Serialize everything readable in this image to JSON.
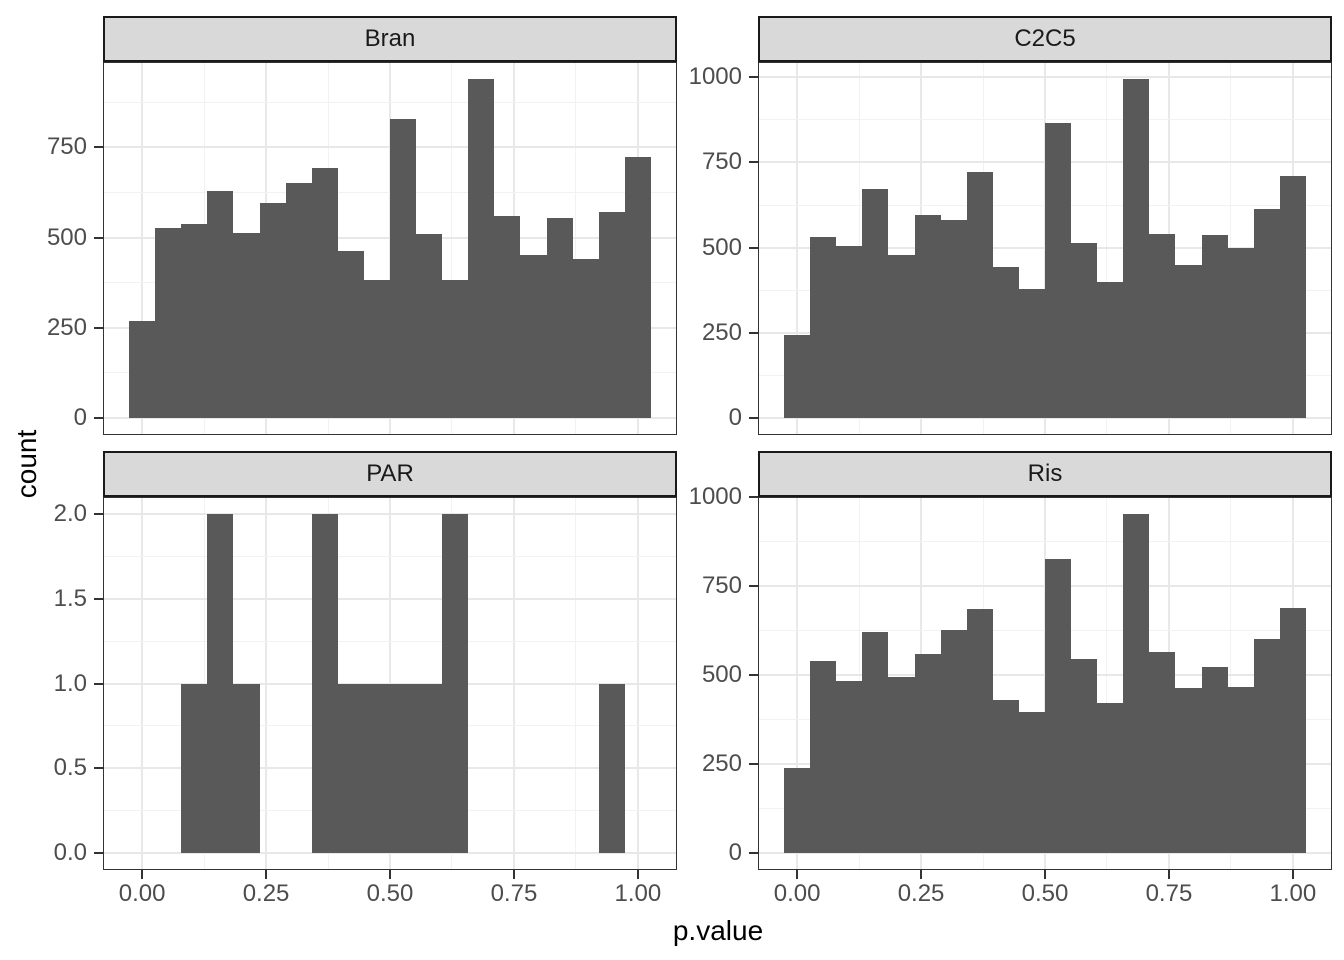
{
  "figure": {
    "xlabel": "p.value",
    "ylabel": "count"
  },
  "colors": {
    "background": "#ffffff",
    "bar_fill": "#595959",
    "strip_bg": "#d9d9d9",
    "strip_border": "#1a1a1a",
    "strip_text": "#1a1a1a",
    "panel_bg": "#ffffff",
    "panel_border": "#333333",
    "grid_major": "#e8e8e8",
    "grid_minor": "#f2f2f2",
    "tick_label": "#4d4d4d",
    "tick_mark": "#333333",
    "axis_title": "#000000"
  },
  "x_axis": {
    "title": "p.value",
    "lim": [
      -0.0789,
      1.0789
    ],
    "ticks": [
      {
        "v": 0.0,
        "label": "0.00"
      },
      {
        "v": 0.25,
        "label": "0.25"
      },
      {
        "v": 0.5,
        "label": "0.50"
      },
      {
        "v": 0.75,
        "label": "0.75"
      },
      {
        "v": 1.0,
        "label": "1.00"
      }
    ],
    "minor_ticks": [
      0.125,
      0.375,
      0.625,
      0.875
    ]
  },
  "chart_data": [
    {
      "type": "bar",
      "facet": "Bran",
      "row": 0,
      "col": 0,
      "xlabel": "p.value",
      "ylabel": "count",
      "bin_start": -0.0263,
      "bin_width": 0.05263,
      "values": [
        270,
        527,
        538,
        630,
        512,
        595,
        652,
        692,
        463,
        382,
        830,
        510,
        383,
        940,
        560,
        452,
        555,
        441,
        570,
        723
      ],
      "ylim": [
        -47,
        987
      ],
      "y_ticks": [
        {
          "v": 0,
          "label": "0"
        },
        {
          "v": 250,
          "label": "250"
        },
        {
          "v": 500,
          "label": "500"
        },
        {
          "v": 750,
          "label": "750"
        }
      ],
      "y_minor_ticks": [
        125,
        375,
        625,
        875
      ]
    },
    {
      "type": "bar",
      "facet": "C2C5",
      "row": 0,
      "col": 1,
      "xlabel": "p.value",
      "ylabel": "count",
      "bin_start": -0.0263,
      "bin_width": 0.05263,
      "values": [
        243,
        530,
        505,
        673,
        479,
        595,
        580,
        723,
        444,
        378,
        866,
        515,
        400,
        995,
        541,
        450,
        537,
        499,
        612,
        710
      ],
      "ylim": [
        -49.75,
        1044.75
      ],
      "y_ticks": [
        {
          "v": 0,
          "label": "0"
        },
        {
          "v": 250,
          "label": "250"
        },
        {
          "v": 500,
          "label": "500"
        },
        {
          "v": 750,
          "label": "750"
        },
        {
          "v": 1000,
          "label": "1000"
        }
      ],
      "y_minor_ticks": [
        125,
        375,
        625,
        875
      ]
    },
    {
      "type": "bar",
      "facet": "PAR",
      "row": 1,
      "col": 0,
      "xlabel": "p.value",
      "ylabel": "count",
      "bin_start": -0.0263,
      "bin_width": 0.05263,
      "values": [
        0,
        0,
        1,
        2,
        1,
        0,
        0,
        2,
        1,
        1,
        1,
        1,
        2,
        0,
        0,
        0,
        0,
        0,
        1,
        0
      ],
      "ylim": [
        -0.1,
        2.1
      ],
      "y_ticks": [
        {
          "v": 0,
          "label": "0.0"
        },
        {
          "v": 0.5,
          "label": "0.5"
        },
        {
          "v": 1,
          "label": "1.0"
        },
        {
          "v": 1.5,
          "label": "1.5"
        },
        {
          "v": 2,
          "label": "2.0"
        }
      ],
      "y_minor_ticks": [
        0.25,
        0.75,
        1.25,
        1.75
      ]
    },
    {
      "type": "bar",
      "facet": "Ris",
      "row": 1,
      "col": 1,
      "xlabel": "p.value",
      "ylabel": "count",
      "bin_start": -0.0263,
      "bin_width": 0.05263,
      "values": [
        240,
        541,
        484,
        621,
        494,
        559,
        626,
        686,
        431,
        397,
        825,
        545,
        422,
        953,
        566,
        464,
        522,
        466,
        601,
        688
      ],
      "ylim": [
        -47.65,
        1000.65
      ],
      "y_ticks": [
        {
          "v": 0,
          "label": "0"
        },
        {
          "v": 250,
          "label": "250"
        },
        {
          "v": 500,
          "label": "500"
        },
        {
          "v": 750,
          "label": "750"
        },
        {
          "v": 1000,
          "label": "1000"
        }
      ],
      "y_minor_ticks": [
        125,
        375,
        625,
        875
      ]
    }
  ]
}
